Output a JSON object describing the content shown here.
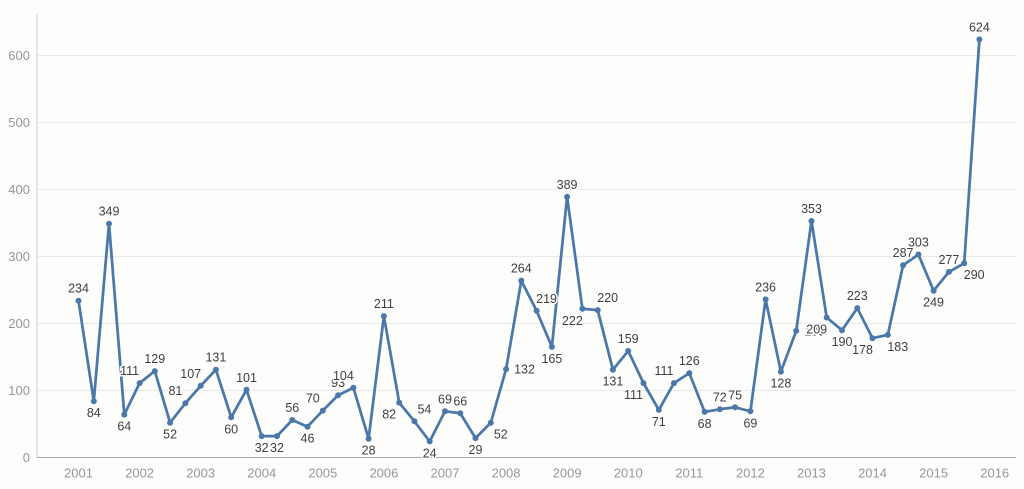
{
  "chart_data": {
    "type": "line",
    "title": "",
    "xlabel": "",
    "ylabel": "",
    "frequency": "quarterly",
    "legend": "none",
    "grid": "horizontal",
    "ylim": [
      0,
      650
    ],
    "y_tick_values": [
      0,
      100,
      200,
      300,
      400,
      500,
      600
    ],
    "y_tick_labels": [
      "0",
      "100",
      "200",
      "300",
      "400",
      "500",
      "600"
    ],
    "x_tick_labels": [
      "2001",
      "2002",
      "2003",
      "2004",
      "2005",
      "2006",
      "2007",
      "2008",
      "2009",
      "2010",
      "2011",
      "2012",
      "2013",
      "2014",
      "2015",
      "2016"
    ],
    "points_per_year": 4,
    "series": [
      {
        "name": "value",
        "values": [
          234,
          84,
          349,
          64,
          111,
          129,
          52,
          81,
          107,
          131,
          60,
          101,
          32,
          32,
          56,
          46,
          70,
          93,
          104,
          28,
          211,
          82,
          54,
          24,
          69,
          66,
          29,
          52,
          132,
          264,
          219,
          165,
          389,
          222,
          220,
          131,
          159,
          111,
          71,
          111,
          126,
          68,
          72,
          75,
          69,
          236,
          128,
          189,
          353,
          209,
          190,
          223,
          178,
          183,
          287,
          303,
          249,
          277,
          290,
          624
        ]
      }
    ],
    "point_labels_shown": true,
    "label_positions": [
      "a",
      "b",
      "a",
      "b",
      "al",
      "a",
      "b",
      "al",
      "al",
      "a",
      "b",
      "a",
      "b",
      "b",
      "a",
      "b",
      "al",
      "a",
      "al",
      "b",
      "a",
      "bl",
      "ar",
      "b",
      "a",
      "a",
      "b",
      "br",
      "r",
      "a",
      "ar",
      "b",
      "a",
      "bl",
      "ar",
      "b",
      "a",
      "bl",
      "b",
      "al",
      "a",
      "b",
      "a",
      "a",
      "b",
      "a",
      "b",
      "r",
      "a",
      "bl",
      "b",
      "a",
      "bl",
      "br",
      "a",
      "a",
      "b",
      "a",
      "br",
      "a"
    ],
    "colors": {
      "line": "#4a78a8",
      "marker": "#4a78a8",
      "data_label": "#3f3f3f",
      "tick_label": "#979797",
      "gridline": "#e9e9e9",
      "axis": "#a8a8a8",
      "background": "#fdfdfc"
    }
  }
}
